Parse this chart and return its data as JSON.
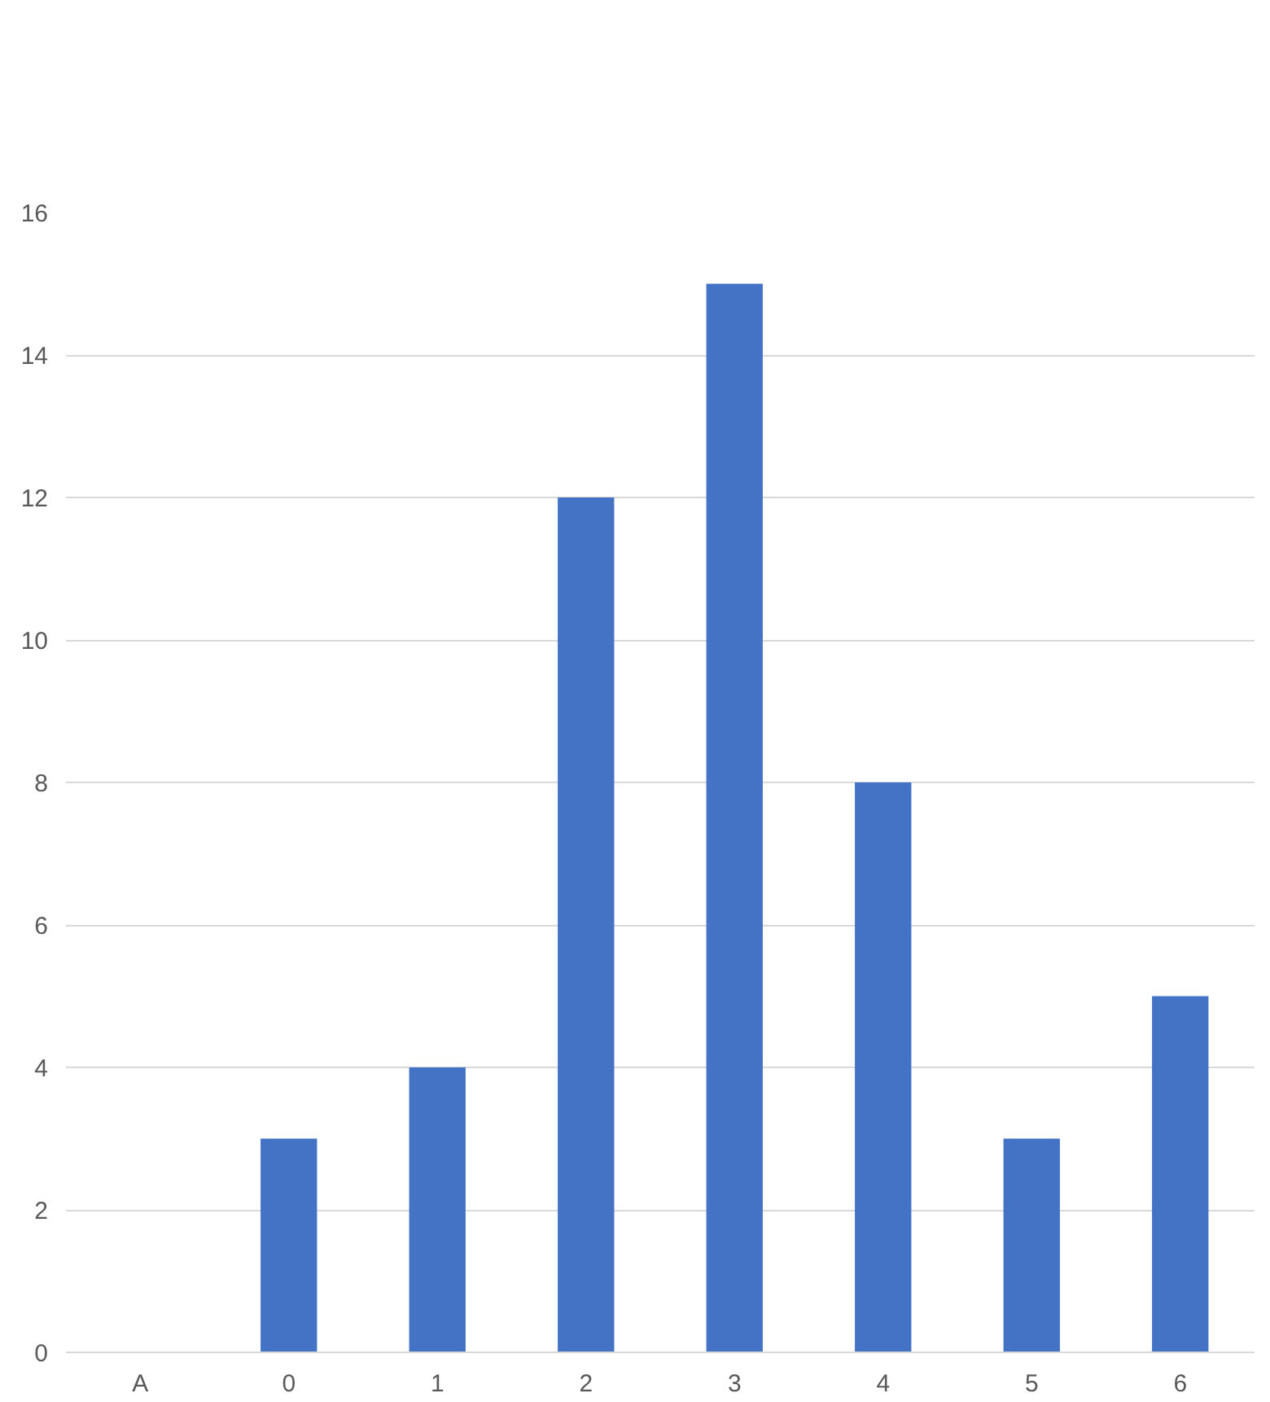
{
  "chart_data": {
    "type": "bar",
    "categories": [
      "A",
      "0",
      "1",
      "2",
      "3",
      "4",
      "5",
      "6"
    ],
    "values": [
      null,
      3,
      4,
      12,
      15,
      8,
      3,
      5
    ],
    "color": "#4472c4",
    "ylim": [
      0,
      16
    ],
    "yticks": [
      0,
      2,
      4,
      6,
      8,
      10,
      12,
      14,
      16
    ],
    "grid": "y"
  }
}
